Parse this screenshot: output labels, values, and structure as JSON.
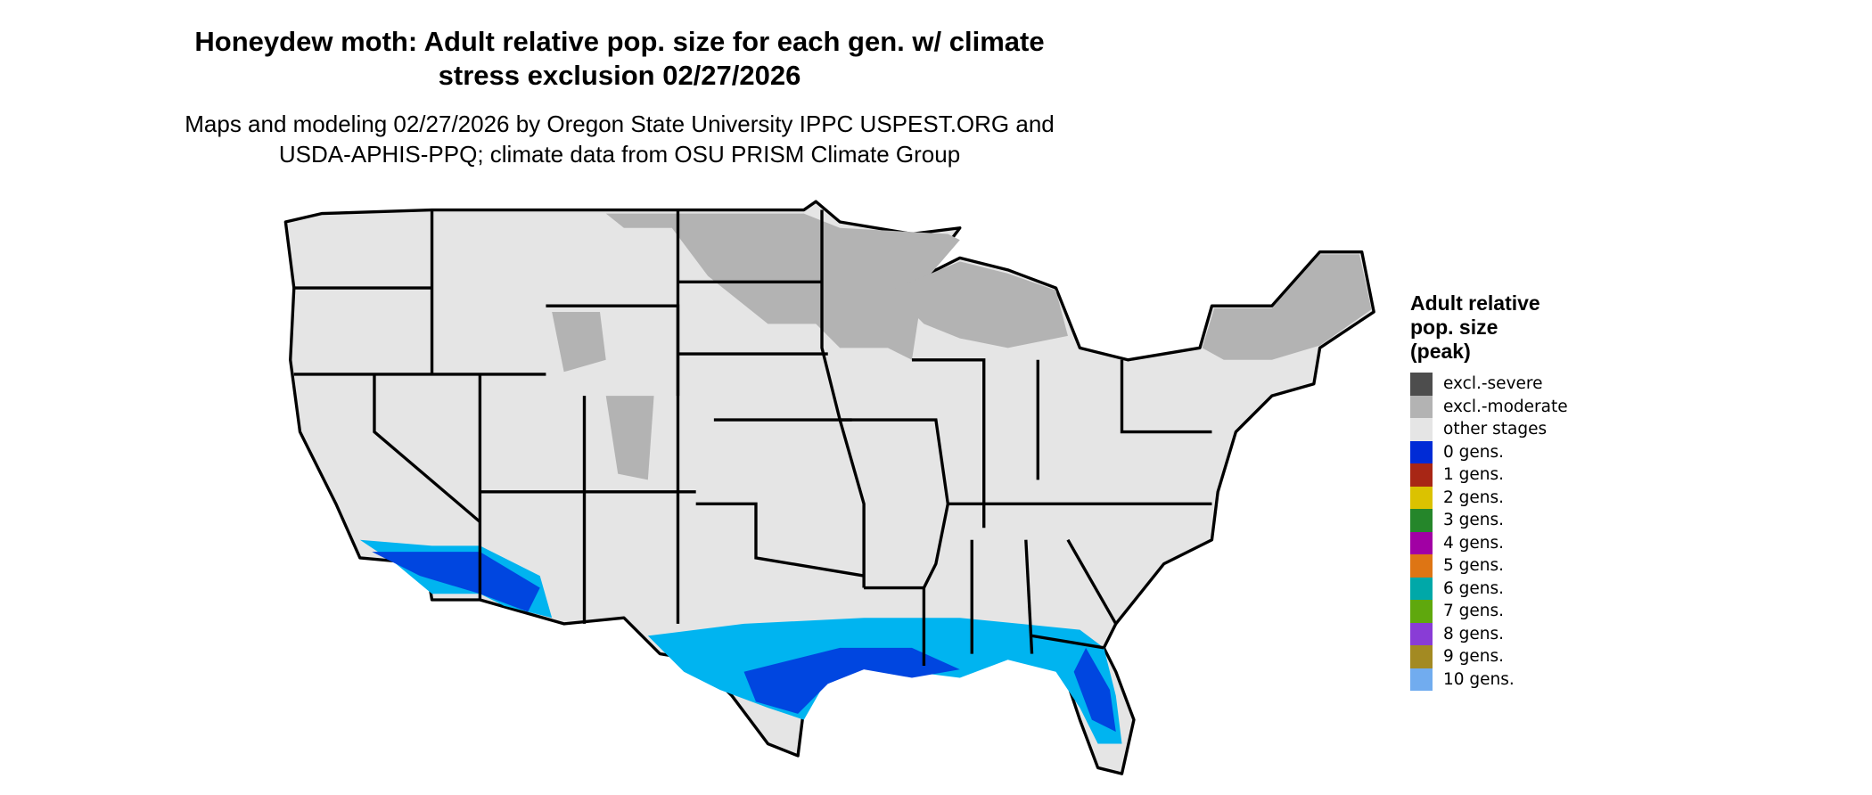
{
  "title": {
    "line1": "Honeydew moth: Adult relative pop. size for each gen. w/ climate",
    "line2": "stress exclusion 02/27/2026"
  },
  "subtitle": {
    "line1": "Maps and modeling 02/27/2026 by Oregon State University IPPC USPEST.ORG and",
    "line2": "USDA-APHIS-PPQ; climate data from OSU PRISM Climate Group"
  },
  "map": {
    "region": "Contiguous United States",
    "base_color": "#e5e5e5",
    "border_color": "#000000",
    "areas": [
      {
        "category": "excl.-moderate",
        "where": "North Dakota, Minnesota, Wisconsin, Michigan, northern New England, northeastern South Dakota"
      },
      {
        "category": "0 gens.",
        "where": "Gulf Coast (TX, LA, MS, AL), Florida, southern California, southern Arizona"
      }
    ],
    "blue_light": "#00b4f0",
    "blue_dark": "#0046e0"
  },
  "legend": {
    "title_line1": "Adult relative",
    "title_line2": "pop. size",
    "title_line3": "(peak)",
    "items": [
      {
        "label": "excl.-severe",
        "color": "#4d4d4d"
      },
      {
        "label": "excl.-moderate",
        "color": "#b3b3b3"
      },
      {
        "label": "other stages",
        "color": "#e5e5e5"
      },
      {
        "label": "0 gens.",
        "color": "#002bd6"
      },
      {
        "label": "1 gens.",
        "color": "#a82615"
      },
      {
        "label": "2 gens.",
        "color": "#dbc200"
      },
      {
        "label": "3 gens.",
        "color": "#25862a"
      },
      {
        "label": "4 gens.",
        "color": "#a100a4"
      },
      {
        "label": "5 gens.",
        "color": "#de7514"
      },
      {
        "label": "6 gens.",
        "color": "#00a8a8"
      },
      {
        "label": "7 gens.",
        "color": "#5fa80d"
      },
      {
        "label": "8 gens.",
        "color": "#893cd6"
      },
      {
        "label": "9 gens.",
        "color": "#a38a22"
      },
      {
        "label": "10 gens.",
        "color": "#71acef"
      }
    ]
  }
}
